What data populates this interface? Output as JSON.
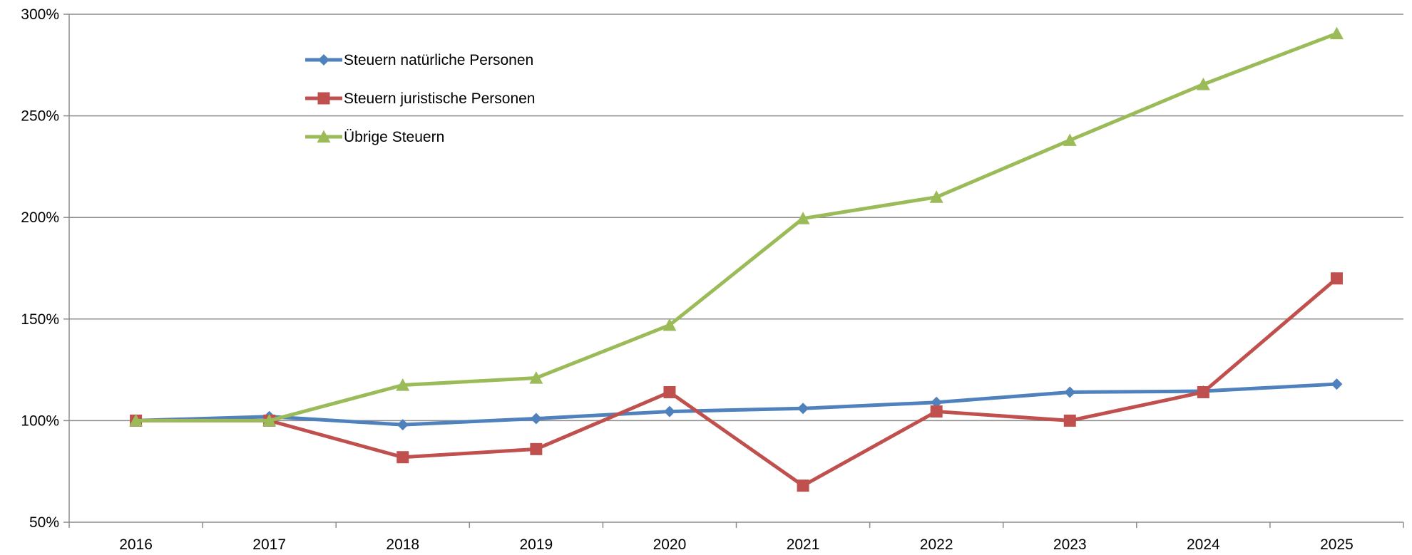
{
  "chart_data": {
    "type": "line",
    "title": "",
    "xlabel": "",
    "ylabel": "",
    "x": [
      "2016",
      "2017",
      "2018",
      "2019",
      "2020",
      "2021",
      "2022",
      "2023",
      "2024",
      "2025"
    ],
    "ylim": [
      50,
      300
    ],
    "yticks": [
      50,
      100,
      150,
      200,
      250,
      300
    ],
    "ytick_labels": [
      "50%",
      "100%",
      "150%",
      "200%",
      "250%",
      "300%"
    ],
    "grid": true,
    "legend_position": "top-left",
    "series": [
      {
        "name": "Steuern natürliche Personen",
        "color": "#4F81BD",
        "marker": "diamond",
        "values": [
          100,
          102,
          98,
          101,
          104.5,
          106,
          109,
          114,
          114.5,
          118
        ]
      },
      {
        "name": "Steuern juristische Personen",
        "color": "#C0504D",
        "marker": "square",
        "values": [
          100,
          100,
          82,
          86,
          114,
          68,
          104.5,
          100,
          114,
          170
        ]
      },
      {
        "name": "Übrige Steuern",
        "color": "#9BBB59",
        "marker": "triangle",
        "values": [
          100,
          100,
          117.5,
          121,
          147,
          199.5,
          210,
          238,
          265.5,
          290.5
        ]
      }
    ]
  }
}
